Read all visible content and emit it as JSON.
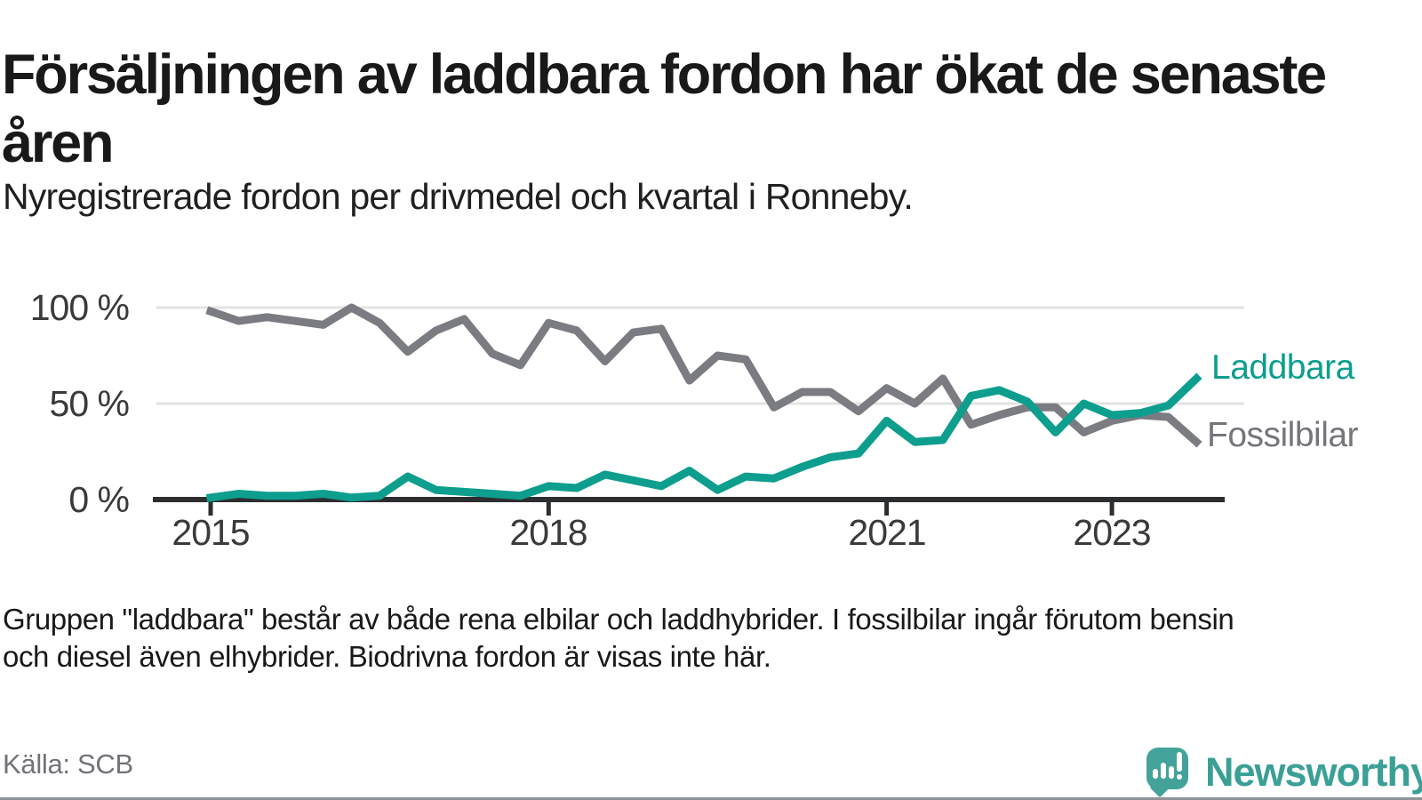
{
  "title": "Försäljningen av laddbara fordon har ökat de senaste åren",
  "subtitle": "Nyregistrerade fordon per drivmedel och kvartal i Ronneby.",
  "footnote_line1": "Gruppen \"laddbara\" består av både rena elbilar och laddhybrider. I fossilbilar ingår förutom bensin",
  "footnote_line2": "och diesel även elhybrider. Biodrivna fordon är visas inte här.",
  "source": "Källa: SCB",
  "brand": {
    "name": "Newsworthy",
    "logo_icon": "speech-bubble-bar-chart-icon",
    "color": "#3aa096"
  },
  "chart_data": {
    "type": "line",
    "title": "Försäljningen av laddbara fordon har ökat de senaste åren",
    "subtitle": "Nyregistrerade fordon per drivmedel och kvartal i Ronneby.",
    "x_quarters": [
      "2015Q1",
      "2015Q2",
      "2015Q3",
      "2015Q4",
      "2016Q1",
      "2016Q2",
      "2016Q3",
      "2016Q4",
      "2017Q1",
      "2017Q2",
      "2017Q3",
      "2017Q4",
      "2018Q1",
      "2018Q2",
      "2018Q3",
      "2018Q4",
      "2019Q1",
      "2019Q2",
      "2019Q3",
      "2019Q4",
      "2020Q1",
      "2020Q2",
      "2020Q3",
      "2020Q4",
      "2021Q1",
      "2021Q2",
      "2021Q3",
      "2021Q4",
      "2022Q1",
      "2022Q2",
      "2022Q3",
      "2022Q4",
      "2023Q1",
      "2023Q2",
      "2023Q3",
      "2023Q4"
    ],
    "unit": "%",
    "series": [
      {
        "name": "Fossilbilar",
        "color": "#7b7c81",
        "values": [
          98,
          93,
          95,
          93,
          91,
          100,
          92,
          77,
          88,
          94,
          76,
          70,
          92,
          88,
          72,
          87,
          89,
          62,
          75,
          73,
          48,
          56,
          56,
          46,
          58,
          50,
          63,
          39,
          44,
          48,
          48,
          35,
          41,
          44,
          43,
          30
        ]
      },
      {
        "name": "Laddbara",
        "color": "#0d9e8e",
        "values": [
          1,
          3,
          2,
          2,
          3,
          1,
          2,
          12,
          5,
          4,
          3,
          2,
          7,
          6,
          13,
          10,
          7,
          15,
          5,
          12,
          11,
          17,
          22,
          24,
          41,
          30,
          31,
          54,
          57,
          51,
          35,
          50,
          44,
          45,
          49,
          63
        ]
      }
    ],
    "y_tick_labels": [
      "100 %",
      "50 %",
      "0 %"
    ],
    "y_ticks": [
      100,
      50,
      0
    ],
    "x_tick_labels": [
      "2015",
      "2018",
      "2021",
      "2023"
    ],
    "ylim": [
      0,
      100
    ],
    "grid": "horizontal",
    "legend_position": "right-of-line-ends"
  }
}
